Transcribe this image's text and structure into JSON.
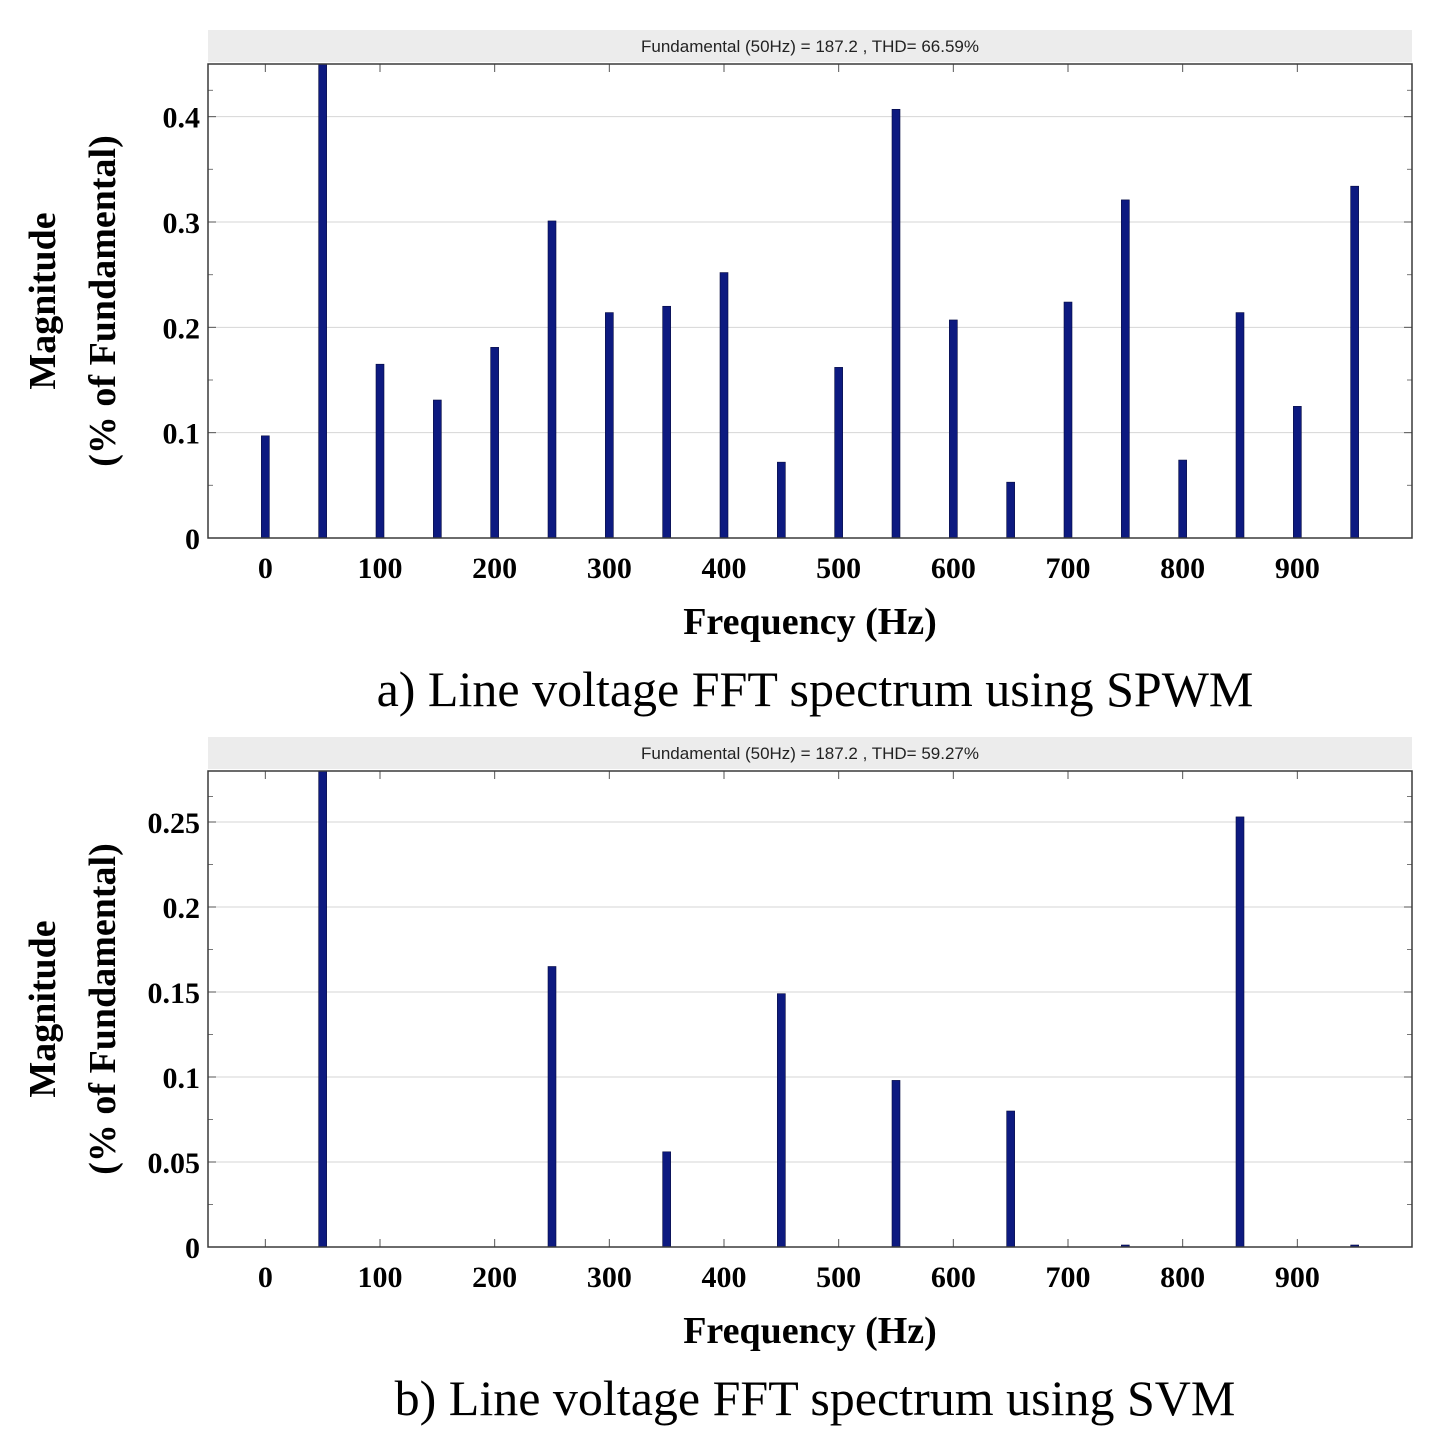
{
  "chart_data": [
    {
      "type": "bar",
      "title": "Fundamental (50Hz) = 187.2 , THD= 66.59%",
      "xlabel": "Frequency (Hz)",
      "ylabel_line1": "Magnitude",
      "ylabel_line2": "(% of Fundamental)",
      "caption": "a) Line voltage FFT spectrum using SPWM",
      "xlim": [
        -50,
        1000
      ],
      "ylim": [
        0,
        0.45
      ],
      "x_ticks": [
        0,
        100,
        200,
        300,
        400,
        500,
        600,
        700,
        800,
        900
      ],
      "x_tick_labels": [
        "0",
        "100",
        "200",
        "300",
        "400",
        "500",
        "600",
        "700",
        "800",
        "900"
      ],
      "y_ticks": [
        0,
        0.1,
        0.2,
        0.3,
        0.4
      ],
      "y_tick_labels": [
        "0",
        "0.1",
        "0.2",
        "0.3",
        "0.4"
      ],
      "x": [
        0,
        50,
        100,
        150,
        200,
        250,
        300,
        350,
        400,
        450,
        500,
        550,
        600,
        650,
        700,
        750,
        800,
        850,
        900,
        950
      ],
      "values": [
        0.097,
        0.45,
        0.165,
        0.131,
        0.181,
        0.301,
        0.214,
        0.22,
        0.252,
        0.072,
        0.162,
        0.407,
        0.207,
        0.053,
        0.224,
        0.321,
        0.074,
        0.214,
        0.125,
        0.334
      ],
      "bar_color": "#0d1a80",
      "grid": true
    },
    {
      "type": "bar",
      "title": "Fundamental (50Hz) = 187.2 , THD= 59.27%",
      "xlabel": "Frequency (Hz)",
      "ylabel_line1": "Magnitude",
      "ylabel_line2": "(% of Fundamental)",
      "caption": "b) Line voltage FFT spectrum using SVM",
      "xlim": [
        -50,
        1000
      ],
      "ylim": [
        0,
        0.28
      ],
      "x_ticks": [
        0,
        100,
        200,
        300,
        400,
        500,
        600,
        700,
        800,
        900
      ],
      "x_tick_labels": [
        "0",
        "100",
        "200",
        "300",
        "400",
        "500",
        "600",
        "700",
        "800",
        "900"
      ],
      "y_ticks": [
        0,
        0.05,
        0.1,
        0.15,
        0.2,
        0.25
      ],
      "y_tick_labels": [
        "0",
        "0.05",
        "0.1",
        "0.15",
        "0.2",
        "0.25"
      ],
      "x": [
        0,
        50,
        100,
        150,
        200,
        250,
        300,
        350,
        400,
        450,
        500,
        550,
        600,
        650,
        700,
        750,
        800,
        850,
        900,
        950
      ],
      "values": [
        0,
        0.28,
        0,
        0,
        0,
        0.165,
        0,
        0.056,
        0,
        0.149,
        0,
        0.098,
        0,
        0.08,
        0,
        0.001,
        0,
        0.253,
        0,
        0.001
      ],
      "bar_color": "#0d1a80",
      "grid": true
    }
  ]
}
